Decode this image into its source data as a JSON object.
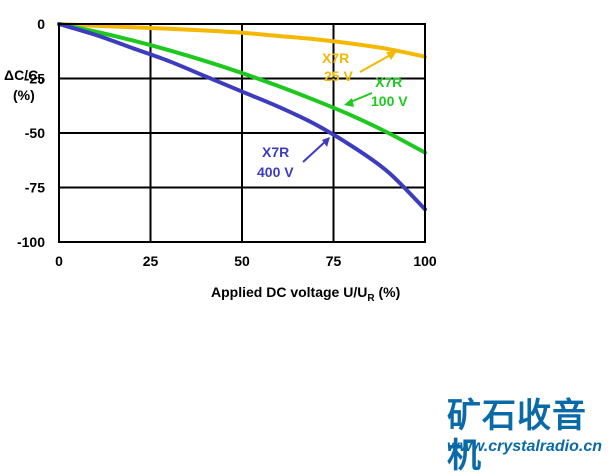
{
  "chart_data": {
    "type": "line",
    "xlabel": "Applied DC voltage U/U",
    "xlabel_sub": "R",
    "xlabel_suffix": " (%)",
    "ylabel": "ΔC/C",
    "ylabel_sub": "0",
    "ylabel_unit": "(%)",
    "xlim": [
      0,
      100
    ],
    "ylim": [
      -100,
      0
    ],
    "xticks": [
      "0",
      "25",
      "50",
      "75",
      "100"
    ],
    "yticks": [
      "0",
      "-25",
      "-50",
      "-75",
      "-100"
    ],
    "grid": true,
    "series": [
      {
        "name_line1": "X7R",
        "name_line2": "25 V",
        "color": "#f5b800",
        "x": [
          0,
          10,
          20,
          30,
          40,
          50,
          60,
          70,
          80,
          90,
          100
        ],
        "y": [
          0,
          -0.8,
          -1.5,
          -2.2,
          -3,
          -4,
          -5.5,
          -7,
          -9,
          -11.5,
          -15
        ]
      },
      {
        "name_line1": "X7R",
        "name_line2": "100 V",
        "color": "#1ec81e",
        "x": [
          0,
          10,
          20,
          30,
          40,
          50,
          60,
          70,
          80,
          90,
          100
        ],
        "y": [
          0,
          -3.5,
          -7.5,
          -12,
          -17,
          -22.5,
          -28.5,
          -35,
          -42,
          -50,
          -59
        ]
      },
      {
        "name_line1": "X7R",
        "name_line2": "400 V",
        "color": "#3c3cbe",
        "x": [
          0,
          10,
          20,
          30,
          40,
          50,
          60,
          70,
          80,
          90,
          100
        ],
        "y": [
          0,
          -5,
          -11,
          -17,
          -24,
          -31,
          -38,
          -46,
          -56,
          -68,
          -85
        ]
      }
    ]
  },
  "watermark": {
    "title": "矿石收音机",
    "url": "www.crystalradio.cn",
    "color": "#0a6aa8"
  }
}
